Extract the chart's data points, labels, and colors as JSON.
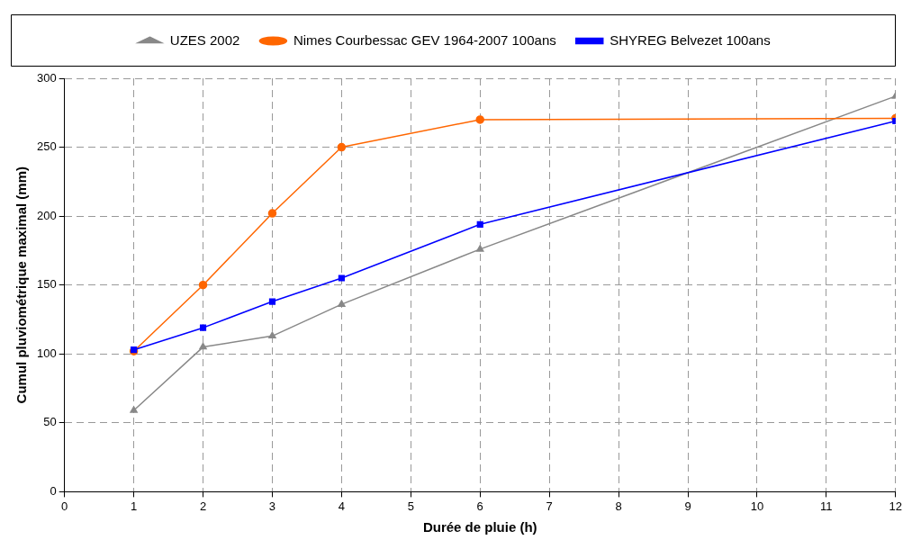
{
  "chart_data": {
    "type": "line",
    "xlabel": "Durée de pluie (h)",
    "ylabel": "Cumul pluviométrique maximal (mm)",
    "xlim": [
      0,
      12
    ],
    "xticks": [
      0,
      1,
      2,
      3,
      4,
      5,
      6,
      7,
      8,
      9,
      10,
      11,
      12
    ],
    "ylim": [
      0,
      300
    ],
    "yticks": [
      0,
      50,
      100,
      150,
      200,
      250,
      300
    ],
    "grid": true,
    "legend": "top",
    "line_style": "solid",
    "series": [
      {
        "name": "UZES 2002",
        "color": "#888888",
        "marker": "triangle",
        "x": [
          1,
          2,
          3,
          4,
          6,
          12
        ],
        "values": [
          59,
          105,
          113,
          136,
          176,
          287
        ]
      },
      {
        "name": "Nimes Courbessac GEV 1964-2007 100ans",
        "color": "#ff6600",
        "marker": "circle",
        "x": [
          1,
          2,
          3,
          4,
          6,
          12
        ],
        "values": [
          102,
          150,
          202,
          250,
          270,
          271
        ]
      },
      {
        "name": "SHYREG Belvezet 100ans",
        "color": "#0000ff",
        "marker": "square",
        "x": [
          1,
          2,
          3,
          4,
          6,
          12
        ],
        "values": [
          103,
          119,
          138,
          155,
          194,
          269
        ]
      }
    ]
  }
}
